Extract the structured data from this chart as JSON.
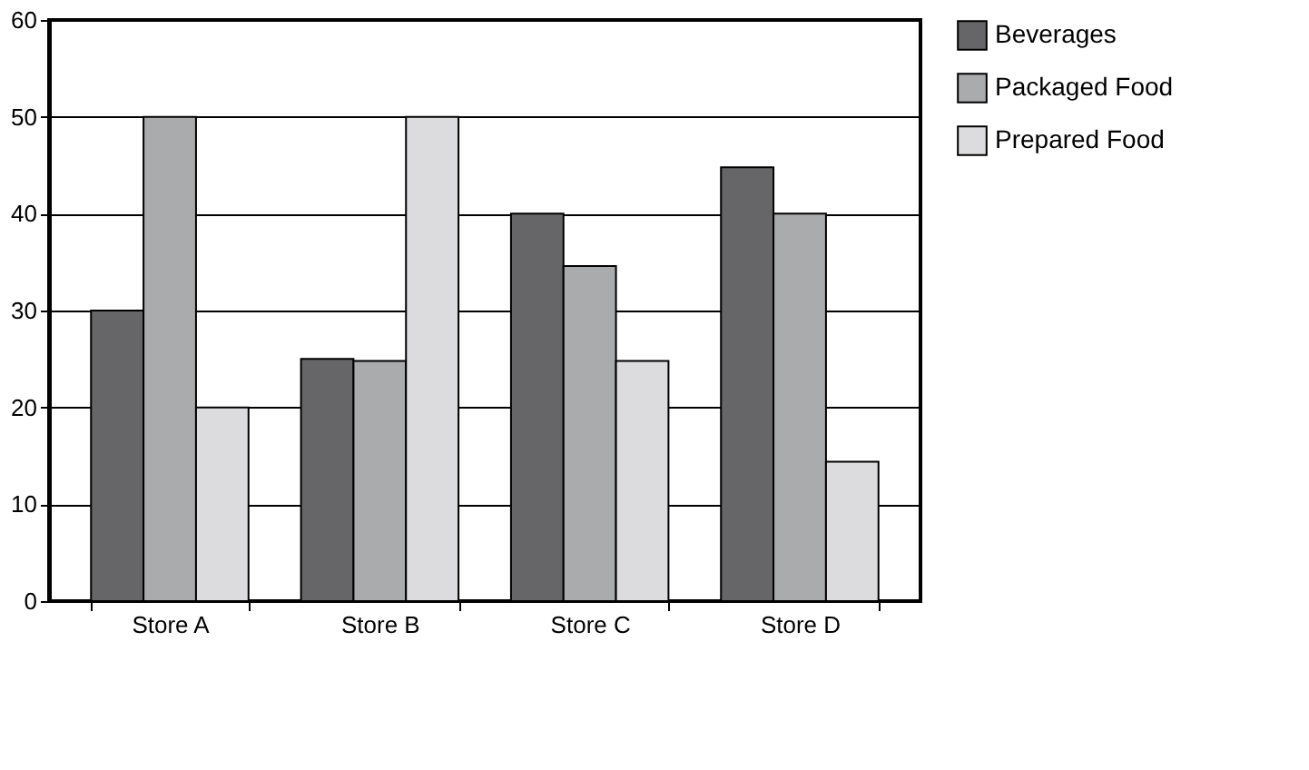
{
  "chart_data": {
    "type": "bar",
    "categories": [
      "Store A",
      "Store B",
      "Store C",
      "Store D"
    ],
    "series": [
      {
        "name": "Beverages",
        "color": "#666668",
        "values": [
          30,
          25,
          40,
          44.8
        ]
      },
      {
        "name": "Packaged Food",
        "color": "#aaabad",
        "values": [
          50,
          24.8,
          34.6,
          40
        ]
      },
      {
        "name": "Prepared Food",
        "color": "#dcdcde",
        "values": [
          20,
          50,
          24.8,
          14.4
        ]
      }
    ],
    "ylim": [
      0,
      60
    ],
    "yticks": [
      0,
      10,
      20,
      30,
      40,
      50,
      60
    ],
    "grid": "y",
    "legend": "right"
  }
}
